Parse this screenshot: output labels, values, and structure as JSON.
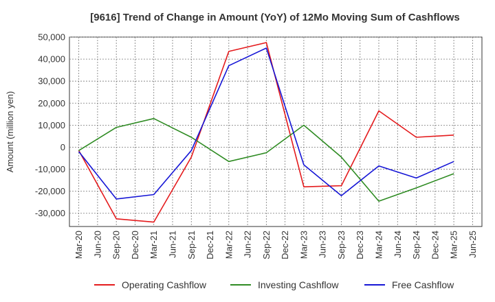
{
  "chart_data": {
    "type": "line",
    "title": "[9616]  Trend of Change in Amount (YoY) of 12Mo Moving Sum of Cashflows",
    "xlabel": "",
    "ylabel": "Amount (million yen)",
    "ylim": [
      -36000,
      50000
    ],
    "yticks": [
      50000,
      40000,
      30000,
      20000,
      10000,
      0,
      -10000,
      -20000,
      -30000
    ],
    "ytick_labels": [
      "50,000",
      "40,000",
      "30,000",
      "20,000",
      "10,000",
      "0",
      "-10,000",
      "-20,000",
      "-30,000"
    ],
    "categories": [
      "Mar-20",
      "Jun-20",
      "Sep-20",
      "Dec-20",
      "Mar-21",
      "Jun-21",
      "Sep-21",
      "Dec-21",
      "Mar-22",
      "Jun-22",
      "Sep-22",
      "Dec-22",
      "Mar-23",
      "Jun-23",
      "Sep-23",
      "Dec-23",
      "Mar-24",
      "Jun-24",
      "Sep-24",
      "Dec-24",
      "Mar-25",
      "Jun-25"
    ],
    "grid": true,
    "legend_position": "bottom",
    "series": [
      {
        "name": "Operating Cashflow",
        "color": "#e41a1c",
        "values": [
          -1500,
          null,
          -32500,
          null,
          -34000,
          null,
          -4500,
          null,
          43500,
          null,
          47500,
          null,
          -18000,
          null,
          -17500,
          null,
          16500,
          null,
          4500,
          null,
          5500,
          null
        ]
      },
      {
        "name": "Investing Cashflow",
        "color": "#2e8b22",
        "values": [
          -1500,
          null,
          9000,
          null,
          13000,
          null,
          4500,
          null,
          -6500,
          null,
          -2500,
          null,
          10000,
          null,
          -4500,
          null,
          -24500,
          null,
          -18500,
          null,
          -12000,
          null
        ]
      },
      {
        "name": "Free Cashflow",
        "color": "#1515d6",
        "values": [
          -2000,
          null,
          -23500,
          null,
          -21500,
          null,
          -1500,
          null,
          37000,
          null,
          45000,
          null,
          -8000,
          null,
          -22000,
          null,
          -8500,
          null,
          -14000,
          null,
          -6500,
          null
        ]
      }
    ]
  }
}
